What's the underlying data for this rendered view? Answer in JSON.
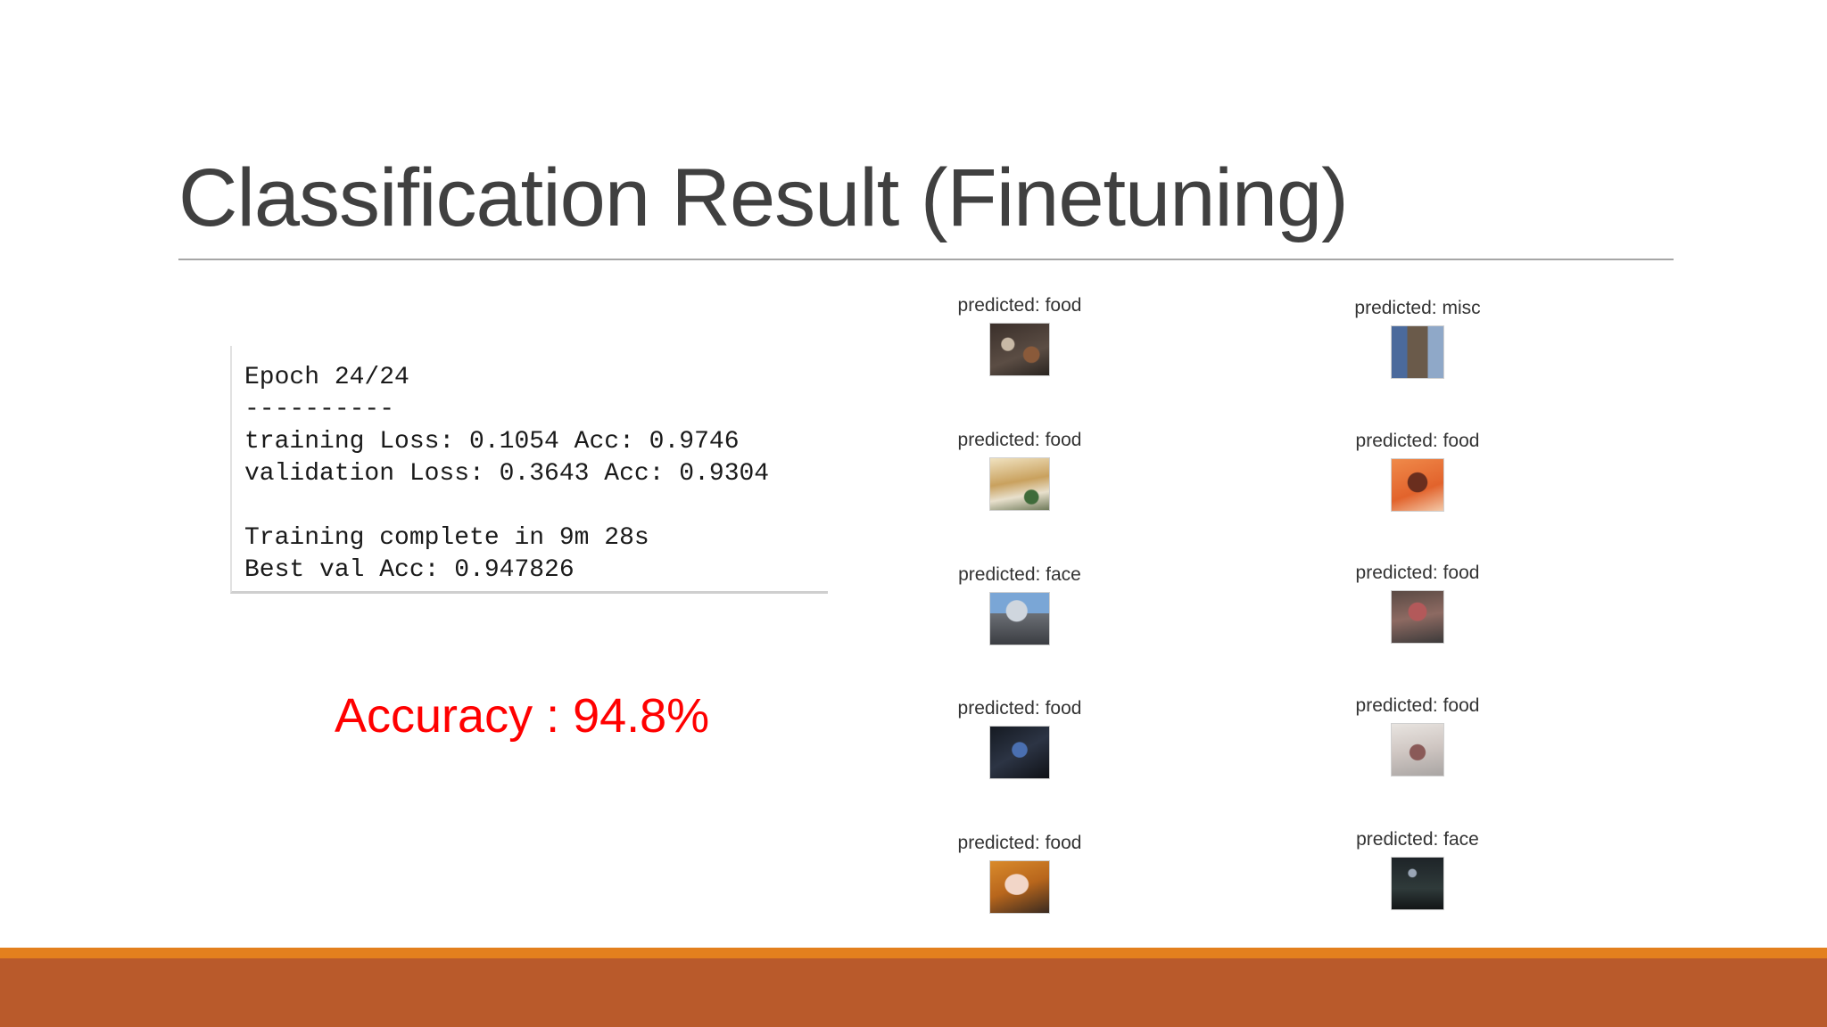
{
  "slide": {
    "title": "Classification Result (Finetuning)",
    "console_text": "Epoch 24/24\n----------\ntraining Loss: 0.1054 Acc: 0.9746\nvalidation Loss: 0.3643 Acc: 0.9304\n\nTraining complete in 9m 28s\nBest val Acc: 0.947826",
    "accuracy": "Accuracy : 94.8%"
  },
  "predictions": {
    "left": [
      {
        "label": "predicted: food"
      },
      {
        "label": "predicted: food"
      },
      {
        "label": "predicted: face"
      },
      {
        "label": "predicted: food"
      },
      {
        "label": "predicted: food"
      }
    ],
    "right": [
      {
        "label": "predicted: misc"
      },
      {
        "label": "predicted: food"
      },
      {
        "label": "predicted: food"
      },
      {
        "label": "predicted: food"
      },
      {
        "label": "predicted: face"
      }
    ]
  },
  "colors": {
    "accuracy_text": "#ff0000",
    "footer_accent": "#e3801e",
    "footer_band": "#b95a2b"
  }
}
